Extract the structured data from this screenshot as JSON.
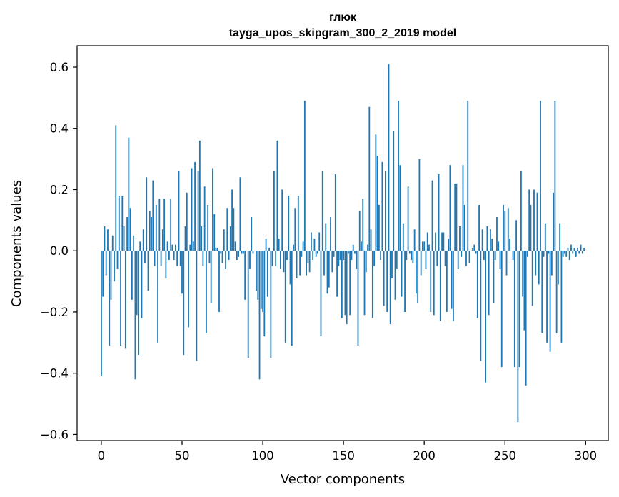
{
  "chart_data": {
    "type": "bar",
    "title": "глюк",
    "subtitle": "tayga_upos_skipgram_300_2_2019 model",
    "xlabel": "Vector components",
    "ylabel": "Components values",
    "xlim": [
      -15,
      314
    ],
    "ylim": [
      -0.62,
      0.67
    ],
    "xticks": [
      0,
      50,
      100,
      150,
      200,
      250,
      300
    ],
    "xtick_labels": [
      "0",
      "50",
      "100",
      "150",
      "200",
      "250",
      "300"
    ],
    "yticks": [
      -0.6,
      -0.4,
      -0.2,
      0.0,
      0.2,
      0.4,
      0.6
    ],
    "ytick_labels": [
      "−0.6",
      "−0.4",
      "−0.2",
      "0.0",
      "0.2",
      "0.4",
      "0.6"
    ],
    "bar_color": "#1f77b4",
    "grid": false,
    "x": "0..299 (component index)",
    "values": [
      -0.41,
      -0.15,
      0.08,
      -0.08,
      0.07,
      -0.31,
      -0.16,
      0.05,
      -0.1,
      0.41,
      -0.06,
      0.18,
      -0.31,
      0.18,
      0.08,
      -0.32,
      0.11,
      0.37,
      0.14,
      -0.16,
      0.05,
      -0.42,
      -0.21,
      -0.34,
      0.03,
      -0.22,
      0.07,
      -0.04,
      0.24,
      -0.13,
      0.13,
      0.11,
      0.23,
      -0.05,
      0.15,
      -0.3,
      0.17,
      -0.05,
      0.07,
      0.17,
      -0.09,
      0.03,
      -0.03,
      0.17,
      0.02,
      -0.03,
      0.02,
      -0.05,
      0.26,
      -0.05,
      -0.14,
      -0.34,
      0.08,
      0.19,
      -0.25,
      0.02,
      0.27,
      0.03,
      0.29,
      -0.36,
      0.26,
      0.36,
      0.08,
      -0.05,
      0.21,
      -0.27,
      0.15,
      -0.04,
      -0.17,
      0.27,
      0.12,
      0.01,
      0.01,
      -0.2,
      -0.01,
      -0.04,
      0.07,
      -0.06,
      0.14,
      -0.03,
      0.08,
      0.2,
      0.14,
      0.03,
      -0.03,
      -0.02,
      0.24,
      -0.01,
      -0.01,
      -0.16,
      0.0,
      -0.35,
      -0.06,
      0.11,
      -0.01,
      0.0,
      -0.13,
      -0.16,
      -0.42,
      -0.19,
      -0.2,
      -0.28,
      0.04,
      -0.15,
      0.01,
      -0.35,
      -0.05,
      0.26,
      -0.05,
      0.36,
      0.04,
      -0.06,
      0.2,
      -0.07,
      -0.3,
      -0.03,
      0.18,
      -0.11,
      -0.31,
      0.02,
      0.14,
      -0.09,
      0.18,
      -0.08,
      -0.02,
      0.03,
      0.49,
      -0.08,
      -0.04,
      -0.07,
      0.06,
      -0.03,
      0.04,
      -0.02,
      -0.01,
      0.06,
      -0.28,
      0.26,
      -0.08,
      0.09,
      -0.14,
      -0.12,
      0.11,
      -0.07,
      -0.02,
      0.25,
      -0.15,
      -0.05,
      -0.03,
      -0.22,
      -0.03,
      -0.21,
      -0.24,
      -0.01,
      -0.21,
      -0.03,
      0.02,
      -0.01,
      -0.06,
      -0.31,
      0.13,
      0.03,
      0.17,
      -0.21,
      -0.07,
      0.02,
      0.47,
      0.07,
      -0.22,
      -0.05,
      0.38,
      0.31,
      0.15,
      -0.03,
      0.29,
      -0.18,
      0.26,
      -0.2,
      0.61,
      -0.24,
      -0.09,
      0.39,
      -0.16,
      -0.06,
      0.49,
      0.28,
      -0.15,
      0.09,
      -0.2,
      -0.03,
      0.21,
      -0.01,
      -0.03,
      -0.04,
      0.07,
      -0.14,
      -0.17,
      0.3,
      -0.08,
      0.03,
      0.03,
      -0.06,
      0.06,
      0.02,
      -0.2,
      0.23,
      -0.21,
      0.06,
      -0.05,
      0.25,
      -0.23,
      0.06,
      0.06,
      -0.05,
      -0.2,
      0.04,
      0.28,
      -0.19,
      -0.23,
      0.22,
      0.22,
      -0.06,
      0.08,
      -0.02,
      0.28,
      0.15,
      -0.05,
      0.49,
      -0.04,
      0.0,
      0.01,
      0.02,
      -0.01,
      -0.22,
      0.15,
      -0.36,
      0.07,
      -0.03,
      -0.43,
      0.08,
      -0.21,
      0.07,
      0.04,
      -0.17,
      -0.03,
      0.11,
      0.03,
      -0.06,
      -0.38,
      0.15,
      0.13,
      -0.08,
      0.14,
      0.04,
      0.0,
      -0.03,
      -0.38,
      0.1,
      -0.56,
      -0.38,
      0.26,
      -0.15,
      -0.26,
      -0.44,
      -0.02,
      0.2,
      0.15,
      -0.18,
      0.2,
      -0.08,
      0.19,
      -0.11,
      0.49,
      -0.27,
      -0.02,
      0.09,
      -0.3,
      -0.01,
      -0.33,
      -0.08,
      0.19,
      0.49,
      -0.27,
      -0.11,
      0.09,
      -0.3,
      -0.02,
      -0.01,
      -0.02,
      0.01,
      -0.03,
      0.02,
      -0.01,
      0.01,
      -0.02,
      0.01,
      -0.01,
      0.02,
      -0.01,
      0.01
    ]
  }
}
